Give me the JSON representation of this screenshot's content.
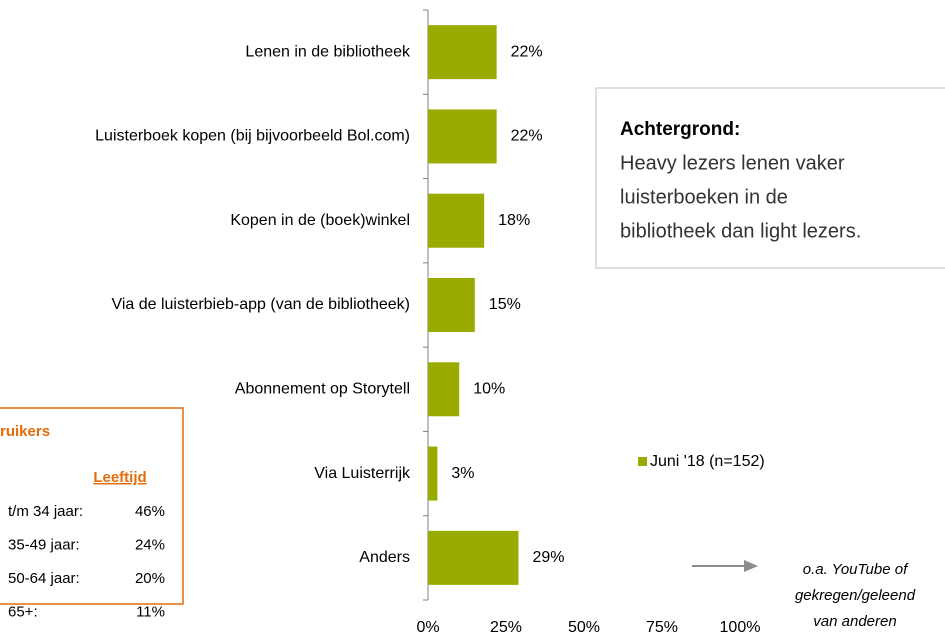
{
  "chart_data": {
    "type": "bar",
    "orientation": "horizontal",
    "categories": [
      "Lenen in de bibliotheek",
      "Luisterboek kopen (bij bijvoorbeeld Bol.com)",
      "Kopen in de (boek)winkel",
      "Via de luisterbieb-app (van de bibliotheek)",
      "Abonnement op Storytell",
      "Via Luisterrijk",
      "Anders"
    ],
    "series": [
      {
        "name": "Juni '18 (n=152)",
        "color": "#9aab00",
        "values": [
          22,
          22,
          18,
          15,
          10,
          3,
          29
        ],
        "value_labels": [
          "22%",
          "22%",
          "18%",
          "15%",
          "10%",
          "3%",
          "29%"
        ]
      }
    ],
    "xlim": [
      0,
      100
    ],
    "xticks": [
      {
        "value": 0,
        "label": "0%"
      },
      {
        "value": 25,
        "label": "25%"
      },
      {
        "value": 50,
        "label": "50%"
      },
      {
        "value": 75,
        "label": "75%"
      },
      {
        "value": 100,
        "label": "100%"
      }
    ],
    "legend": "right",
    "annotation": [
      "o.a. YouTube of",
      "gekregen/geleend",
      "van anderen"
    ]
  },
  "background_box": {
    "title": "Achtergrond:",
    "lines": [
      "Heavy lezers lenen vaker",
      "luisterboeken in de",
      "bibliotheek dan light lezers."
    ]
  },
  "info_box": {
    "title": "ruikers",
    "header": "Leeftijd",
    "rows": [
      [
        "t/m 34 jaar:",
        "46%"
      ],
      [
        "35-49 jaar:",
        "24%"
      ],
      [
        "50-64 jaar:",
        "20%"
      ],
      [
        "65+:",
        "11%"
      ]
    ]
  }
}
